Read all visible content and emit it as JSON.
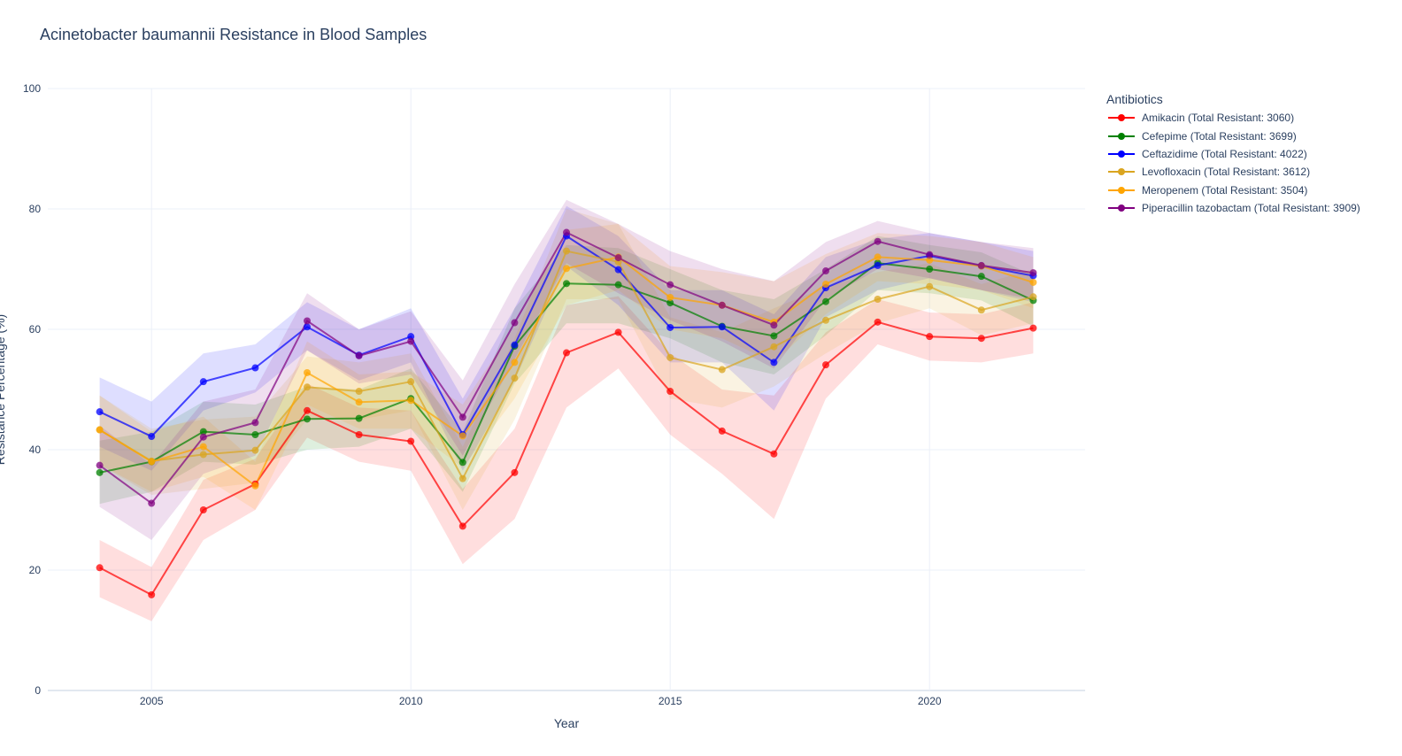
{
  "chart_data": {
    "type": "line",
    "title": "Acinetobacter baumannii Resistance in Blood Samples",
    "xlabel": "Year",
    "ylabel": "Resistance Percentage (%)",
    "xlim": [
      2003,
      2023
    ],
    "ylim": [
      0,
      100
    ],
    "x_ticks": [
      2005,
      2010,
      2015,
      2020
    ],
    "y_ticks": [
      0,
      20,
      40,
      60,
      80,
      100
    ],
    "grid": true,
    "legend_title": "Antibiotics",
    "legend_position": "right",
    "series": [
      {
        "name": "Amikacin (Total Resistant: 3060)",
        "color": "#ff0000",
        "x": [
          2004,
          2005,
          2006,
          2007,
          2008,
          2009,
          2010,
          2011,
          2012,
          2013,
          2014,
          2015,
          2016,
          2017,
          2018,
          2019,
          2020,
          2021,
          2022
        ],
        "y": [
          20.4,
          15.9,
          30.0,
          34.3,
          46.5,
          42.5,
          41.4,
          27.3,
          36.2,
          56.1,
          59.5,
          49.7,
          43.1,
          39.3,
          54.1,
          61.2,
          58.8,
          58.5,
          60.2
        ],
        "lower": [
          15.5,
          11.5,
          25.0,
          30.0,
          42.0,
          38.0,
          36.5,
          21.0,
          28.5,
          47.0,
          53.5,
          42.5,
          36.0,
          28.5,
          48.5,
          57.5,
          54.8,
          54.5,
          56.0
        ],
        "upper": [
          25.0,
          20.5,
          35.0,
          38.5,
          51.0,
          47.0,
          46.5,
          33.5,
          43.5,
          64.0,
          65.5,
          56.0,
          50.0,
          49.0,
          59.5,
          65.0,
          62.8,
          62.5,
          64.5
        ]
      },
      {
        "name": "Cefepime (Total Resistant: 3699)",
        "color": "#008000",
        "x": [
          2004,
          2005,
          2006,
          2007,
          2008,
          2009,
          2010,
          2011,
          2012,
          2013,
          2014,
          2015,
          2016,
          2017,
          2018,
          2019,
          2020,
          2021,
          2022
        ],
        "y": [
          36.2,
          38.0,
          43.0,
          42.5,
          45.1,
          45.2,
          48.5,
          37.9,
          57.2,
          67.6,
          67.4,
          64.4,
          60.5,
          58.9,
          64.6,
          71.0,
          70.0,
          68.8,
          64.8
        ],
        "lower": [
          31.0,
          33.0,
          38.0,
          37.5,
          40.0,
          40.5,
          43.5,
          33.0,
          51.0,
          61.0,
          61.0,
          58.5,
          54.5,
          52.5,
          59.0,
          66.5,
          66.0,
          64.8,
          60.5
        ],
        "upper": [
          41.5,
          43.0,
          48.0,
          47.5,
          50.5,
          50.0,
          53.5,
          43.0,
          63.5,
          74.0,
          73.5,
          70.0,
          66.5,
          65.0,
          70.0,
          75.5,
          74.0,
          72.8,
          69.0
        ]
      },
      {
        "name": "Ceftazidime (Total Resistant: 4022)",
        "color": "#0000ff",
        "x": [
          2004,
          2005,
          2006,
          2007,
          2008,
          2009,
          2010,
          2011,
          2012,
          2013,
          2014,
          2015,
          2016,
          2017,
          2018,
          2019,
          2020,
          2021,
          2022
        ],
        "y": [
          46.3,
          42.2,
          51.3,
          53.6,
          60.4,
          55.7,
          58.8,
          42.5,
          57.4,
          75.5,
          69.9,
          60.3,
          60.4,
          54.5,
          66.9,
          70.6,
          72.2,
          70.5,
          68.9
        ],
        "lower": [
          40.5,
          36.5,
          46.5,
          49.5,
          56.5,
          51.5,
          54.5,
          36.5,
          51.5,
          70.5,
          64.0,
          54.5,
          54.5,
          46.5,
          62.0,
          66.5,
          68.5,
          66.5,
          64.5
        ],
        "upper": [
          52.0,
          48.0,
          56.0,
          57.5,
          64.5,
          60.0,
          63.5,
          48.5,
          63.5,
          80.5,
          75.5,
          66.5,
          66.5,
          62.5,
          72.0,
          75.0,
          76.0,
          74.5,
          73.0
        ]
      },
      {
        "name": "Levofloxacin (Total Resistant: 3612)",
        "color": "#daa520",
        "x": [
          2004,
          2005,
          2006,
          2007,
          2008,
          2009,
          2010,
          2011,
          2012,
          2013,
          2014,
          2015,
          2016,
          2017,
          2018,
          2019,
          2020,
          2021,
          2022
        ],
        "y": [
          43.3,
          38.1,
          39.2,
          39.9,
          50.4,
          49.7,
          51.3,
          35.2,
          51.9,
          73.0,
          71.2,
          55.3,
          53.3,
          57.1,
          61.5,
          65.0,
          67.1,
          63.2,
          65.4
        ],
        "lower": [
          37.5,
          32.5,
          33.5,
          34.5,
          45.0,
          45.0,
          46.5,
          30.0,
          45.0,
          65.0,
          65.0,
          48.5,
          47.0,
          50.5,
          56.0,
          61.0,
          63.5,
          59.0,
          61.0
        ],
        "upper": [
          49.0,
          43.5,
          45.0,
          45.5,
          55.5,
          54.5,
          56.0,
          40.5,
          58.5,
          80.0,
          77.5,
          62.0,
          59.5,
          63.5,
          67.0,
          69.5,
          71.0,
          67.5,
          70.0
        ]
      },
      {
        "name": "Meropenem (Total Resistant: 3504)",
        "color": "#ffa500",
        "x": [
          2004,
          2005,
          2006,
          2007,
          2008,
          2009,
          2010,
          2011,
          2012,
          2013,
          2014,
          2015,
          2016,
          2017,
          2018,
          2019,
          2020,
          2021,
          2022
        ],
        "y": [
          43.3,
          38.0,
          40.5,
          34.0,
          52.8,
          47.9,
          48.2,
          42.3,
          54.5,
          70.1,
          72.0,
          65.3,
          64.0,
          61.2,
          67.5,
          72.0,
          71.5,
          70.5,
          67.8
        ],
        "lower": [
          37.5,
          33.0,
          35.5,
          30.0,
          47.5,
          43.5,
          43.5,
          37.0,
          48.5,
          64.0,
          66.5,
          60.0,
          58.5,
          54.5,
          62.5,
          68.0,
          67.5,
          66.5,
          63.5
        ],
        "upper": [
          49.0,
          43.0,
          45.5,
          38.0,
          58.0,
          52.5,
          53.0,
          47.5,
          60.5,
          76.5,
          77.5,
          70.5,
          69.5,
          68.0,
          72.5,
          76.0,
          75.5,
          74.5,
          72.0
        ]
      },
      {
        "name": "Piperacillin tazobactam (Total Resistant: 3909)",
        "color": "#800080",
        "x": [
          2004,
          2005,
          2006,
          2007,
          2008,
          2009,
          2010,
          2011,
          2012,
          2013,
          2014,
          2015,
          2016,
          2017,
          2018,
          2019,
          2020,
          2021,
          2022
        ],
        "y": [
          37.4,
          31.1,
          42.1,
          44.5,
          61.4,
          55.6,
          58.0,
          45.4,
          61.1,
          76.1,
          71.9,
          67.4,
          64.0,
          60.7,
          69.7,
          74.6,
          72.4,
          70.6,
          69.4
        ],
        "lower": [
          30.5,
          25.0,
          36.0,
          39.0,
          56.5,
          51.0,
          52.5,
          39.0,
          55.0,
          71.0,
          66.0,
          61.5,
          58.0,
          53.5,
          65.0,
          70.0,
          68.5,
          66.5,
          65.0
        ],
        "upper": [
          44.0,
          37.5,
          48.0,
          50.0,
          66.0,
          60.0,
          63.0,
          51.5,
          67.5,
          81.5,
          77.5,
          73.0,
          70.0,
          68.0,
          74.5,
          78.0,
          76.0,
          74.5,
          73.5
        ]
      }
    ]
  }
}
